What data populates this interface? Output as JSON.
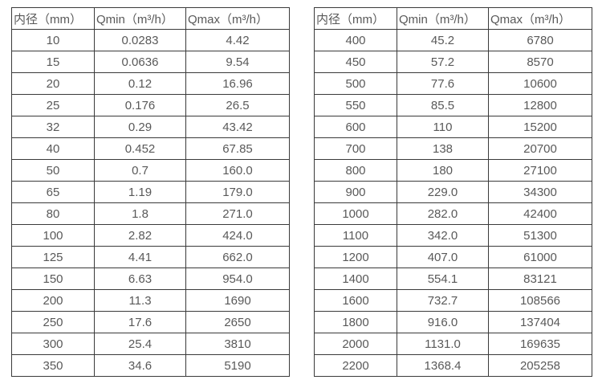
{
  "colors": {
    "background": "#ffffff",
    "border": "#3a3a3a",
    "text": "#595959"
  },
  "header": [
    "内径（mm）",
    "Qmin（m³/h）",
    "Qmax（m³/h）"
  ],
  "tables": [
    {
      "name": "left",
      "rows": [
        [
          "10",
          "0.0283",
          "4.42"
        ],
        [
          "15",
          "0.0636",
          "9.54"
        ],
        [
          "20",
          "0.12",
          "16.96"
        ],
        [
          "25",
          "0.176",
          "26.5"
        ],
        [
          "32",
          "0.29",
          "43.42"
        ],
        [
          "40",
          "0.452",
          "67.85"
        ],
        [
          "50",
          "0.7",
          "160.0"
        ],
        [
          "65",
          "1.19",
          "179.0"
        ],
        [
          "80",
          "1.8",
          "271.0"
        ],
        [
          "100",
          "2.82",
          "424.0"
        ],
        [
          "125",
          "4.41",
          "662.0"
        ],
        [
          "150",
          "6.63",
          "954.0"
        ],
        [
          "200",
          "11.3",
          "1690"
        ],
        [
          "250",
          "17.6",
          "2650"
        ],
        [
          "300",
          "25.4",
          "3810"
        ],
        [
          "350",
          "34.6",
          "5190"
        ]
      ]
    },
    {
      "name": "right",
      "rows": [
        [
          "400",
          "45.2",
          "6780"
        ],
        [
          "450",
          "57.2",
          "8570"
        ],
        [
          "500",
          "77.6",
          "10600"
        ],
        [
          "550",
          "85.5",
          "12800"
        ],
        [
          "600",
          "110",
          "15200"
        ],
        [
          "700",
          "138",
          "20700"
        ],
        [
          "800",
          "180",
          "27100"
        ],
        [
          "900",
          "229.0",
          "34300"
        ],
        [
          "1000",
          "282.0",
          "42400"
        ],
        [
          "1100",
          "342.0",
          "51300"
        ],
        [
          "1200",
          "407.0",
          "61000"
        ],
        [
          "1400",
          "554.1",
          "83121"
        ],
        [
          "1600",
          "732.7",
          "108566"
        ],
        [
          "1800",
          "916.0",
          "137404"
        ],
        [
          "2000",
          "1131.0",
          "169635"
        ],
        [
          "2200",
          "1368.4",
          "205258"
        ]
      ]
    }
  ]
}
